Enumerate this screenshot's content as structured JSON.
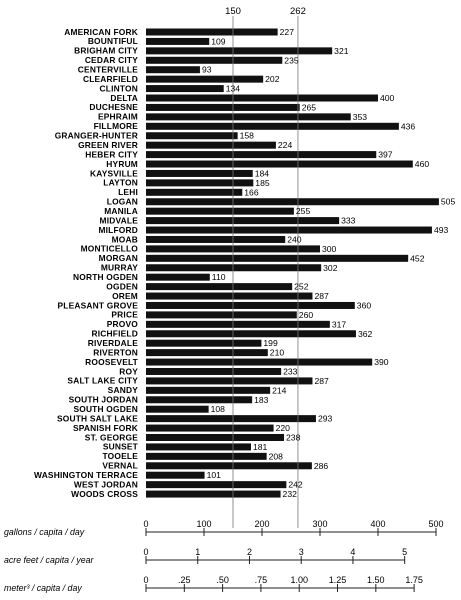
{
  "chart_data": {
    "type": "bar",
    "orientation": "horizontal",
    "title": "",
    "xlabel": "gallons / capita / day",
    "xlim": [
      0,
      500
    ],
    "reference_lines": [
      150,
      262
    ],
    "categories": [
      "AMERICAN FORK",
      "BOUNTIFUL",
      "BRIGHAM CITY",
      "CEDAR CITY",
      "CENTERVILLE",
      "CLEARFIELD",
      "CLINTON",
      "DELTA",
      "DUCHESNE",
      "EPHRAIM",
      "FILLMORE",
      "GRANGER-HUNTER",
      "GREEN RIVER",
      "HEBER CITY",
      "HYRUM",
      "KAYSVILLE",
      "LAYTON",
      "LEHI",
      "LOGAN",
      "MANILA",
      "MIDVALE",
      "MILFORD",
      "MOAB",
      "MONTICELLO",
      "MORGAN",
      "MURRAY",
      "NORTH OGDEN",
      "OGDEN",
      "OREM",
      "PLEASANT GROVE",
      "PRICE",
      "PROVO",
      "RICHFIELD",
      "RIVERDALE",
      "RIVERTON",
      "ROOSEVELT",
      "ROY",
      "SALT LAKE CITY",
      "SANDY",
      "SOUTH JORDAN",
      "SOUTH OGDEN",
      "SOUTH SALT LAKE",
      "SPANISH FORK",
      "ST. GEORGE",
      "SUNSET",
      "TOOELE",
      "VERNAL",
      "WASHINGTON TERRACE",
      "WEST JORDAN",
      "WOODS CROSS"
    ],
    "values": [
      227,
      109,
      321,
      235,
      93,
      202,
      134,
      400,
      265,
      353,
      436,
      158,
      224,
      397,
      460,
      184,
      185,
      166,
      505,
      255,
      333,
      493,
      240,
      300,
      452,
      302,
      110,
      252,
      287,
      360,
      260,
      317,
      362,
      199,
      210,
      390,
      233,
      287,
      214,
      183,
      108,
      293,
      220,
      238,
      181,
      208,
      286,
      101,
      242,
      232
    ],
    "axes": [
      {
        "label": "gallons / capita / day",
        "ticks": [
          "0",
          "100",
          "200",
          "300",
          "400",
          "500"
        ],
        "tick_values": [
          0,
          100,
          200,
          300,
          400,
          500
        ]
      },
      {
        "label": "acre feet / capita / year",
        "ticks": [
          "0",
          "1",
          "2",
          "3",
          "4",
          "5"
        ],
        "tick_values": [
          0,
          1,
          2,
          3,
          4,
          5
        ],
        "gallons_per_unit": 89.2
      },
      {
        "label": "meter³ / capita / day",
        "ticks": [
          "0",
          ".25",
          ".50",
          ".75",
          "1.00",
          "1.25",
          "1.50",
          "1.75"
        ],
        "tick_values": [
          0,
          0.25,
          0.5,
          0.75,
          1.0,
          1.25,
          1.5,
          1.75
        ],
        "gallons_per_unit": 264.17
      }
    ],
    "bar_color": "#111111"
  }
}
